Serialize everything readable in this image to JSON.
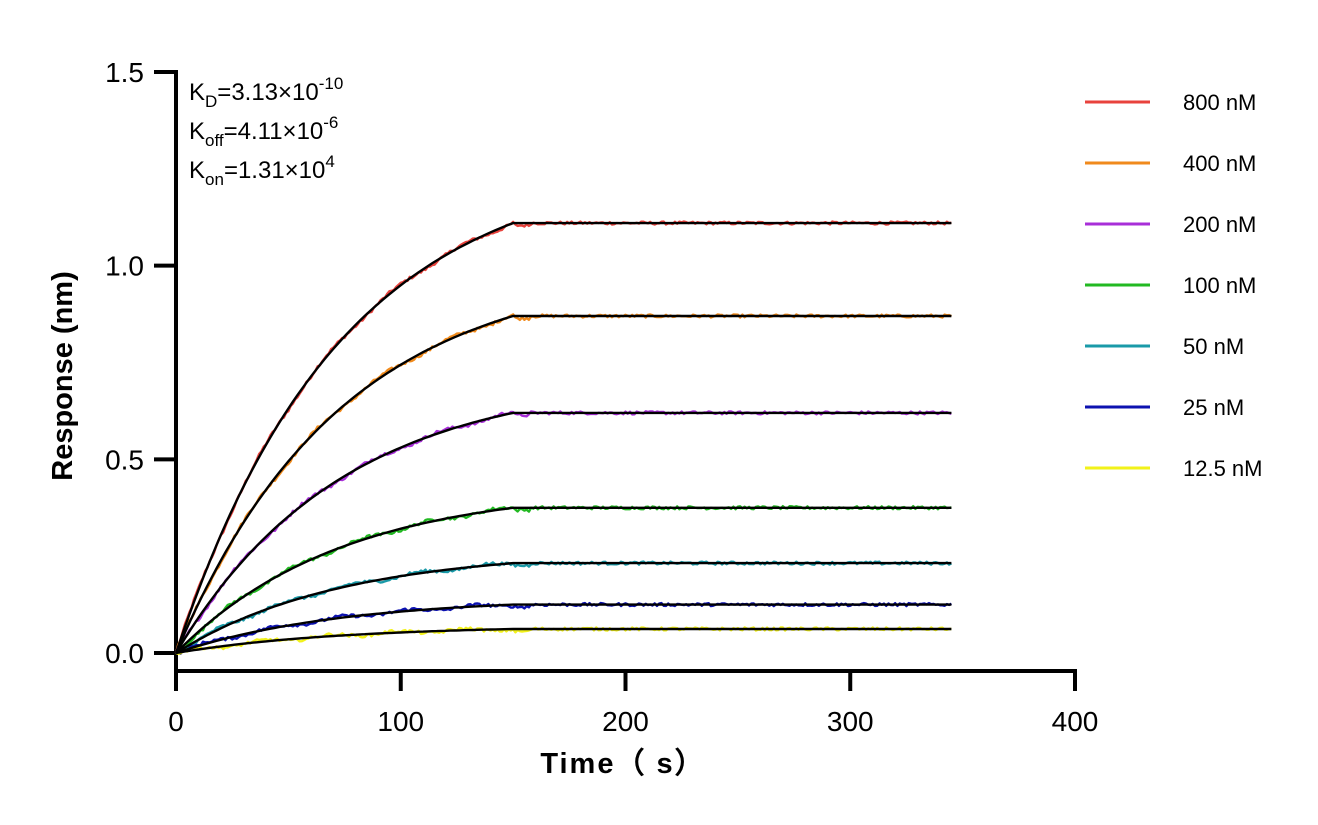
{
  "chart_data": {
    "type": "line",
    "title": "",
    "xlabel": "Time（ s）",
    "ylabel": "Response (nm)",
    "xlim": [
      0,
      400
    ],
    "ylim": [
      0,
      1.5
    ],
    "x_ticks": [
      "0",
      "100",
      "200",
      "300",
      "400"
    ],
    "y_ticks": [
      "0.0",
      "0.5",
      "1.0",
      "1.5"
    ],
    "association_end": 150,
    "x_end": 345,
    "legend_position": "right",
    "annotations": [
      {
        "base": "K",
        "sub": "D",
        "eq": "=3.13×10",
        "sup": "-10"
      },
      {
        "base": "K",
        "sub": "off",
        "eq": "=4.11×10",
        "sup": "-6"
      },
      {
        "base": "K",
        "sub": "on",
        "eq": "=1.31×10",
        "sup": "4"
      }
    ],
    "fit_color": "#000000",
    "kobs": 0.0137,
    "series": [
      {
        "name": "800 nM",
        "color": "#e8423c",
        "plateau": 1.11
      },
      {
        "name": "400 nM",
        "color": "#f08a1c",
        "plateau": 0.87
      },
      {
        "name": "200 nM",
        "color": "#a82fd8",
        "plateau": 0.62
      },
      {
        "name": "100 nM",
        "color": "#22b922",
        "plateau": 0.375
      },
      {
        "name": "50 nM",
        "color": "#1a9aa8",
        "plateau": 0.232
      },
      {
        "name": "25 nM",
        "color": "#0d12b0",
        "plateau": 0.125
      },
      {
        "name": "12.5 nM",
        "color": "#f2f21a",
        "plateau": 0.062
      }
    ]
  }
}
